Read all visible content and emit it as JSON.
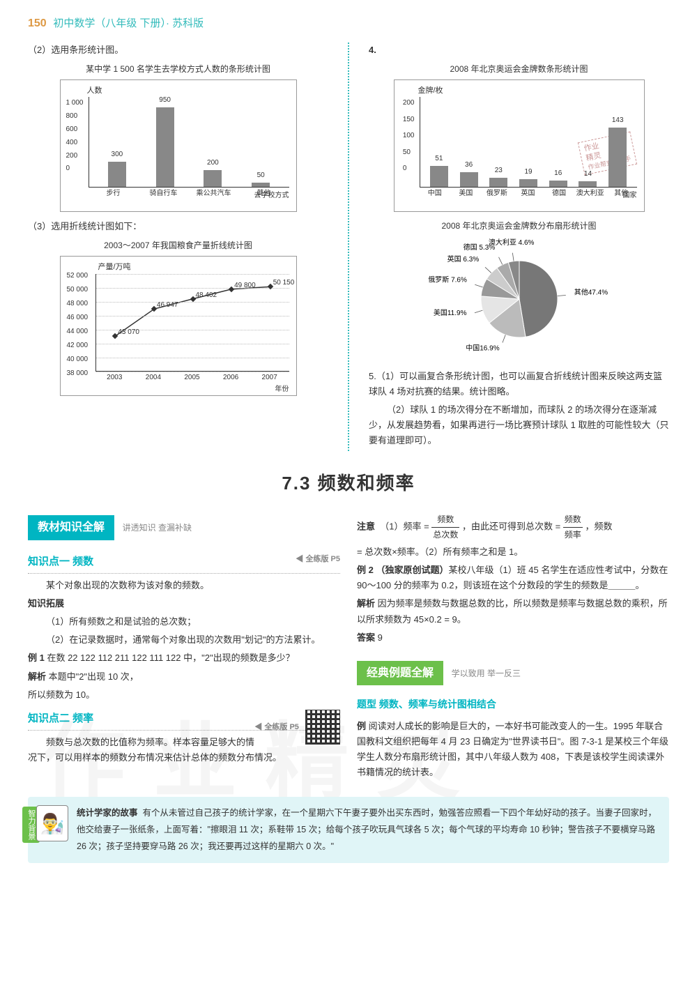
{
  "header": {
    "page_num": "150",
    "book_title": "初中数学（八年级  下册）· 苏科版"
  },
  "left": {
    "q2_label": "（2）选用条形统计图。",
    "bar1": {
      "title": "某中学 1 500 名学生去学校方式人数的条形统计图",
      "ylabel": "人数",
      "xlabel_suffix": "去学校方式",
      "ymax": 1000,
      "yticks": [
        "0",
        "200",
        "400",
        "600",
        "800",
        "1 000"
      ],
      "categories": [
        "步行",
        "骑自行车",
        "乘公共汽车",
        "其他"
      ],
      "values": [
        300,
        950,
        200,
        50
      ],
      "display_values": [
        "300",
        "950",
        "200",
        "50"
      ],
      "bar_color": "#888888"
    },
    "q3_label": "（3）选用折线统计图如下：",
    "line1": {
      "title": "2003～2007 年我国粮食产量折线统计图",
      "ylabel": "产量/万吨",
      "xlabel": "年份",
      "ymin": 38000,
      "ymax": 52000,
      "ystep": 2000,
      "yticks": [
        "38 000",
        "40 000",
        "42 000",
        "44 000",
        "46 000",
        "48 000",
        "50 000",
        "52 000"
      ],
      "years": [
        "2003",
        "2004",
        "2005",
        "2006",
        "2007"
      ],
      "values": [
        43070,
        46947,
        48402,
        49800,
        50150
      ],
      "display_values": [
        "43 070",
        "46 947",
        "48 402",
        "49 800",
        "50 150"
      ]
    }
  },
  "right": {
    "q4": "4.",
    "bar2": {
      "title": "2008 年北京奥运会金牌数条形统计图",
      "ylabel": "金牌/枚",
      "xlabel_suffix": "国家",
      "ymax": 200,
      "ystep": 50,
      "yticks": [
        "0",
        "50",
        "100",
        "150",
        "200"
      ],
      "categories": [
        "中国",
        "美国",
        "俄罗斯",
        "英国",
        "德国",
        "澳大利亚",
        "其他"
      ],
      "values": [
        51,
        36,
        23,
        19,
        16,
        14,
        143
      ],
      "display_values": [
        "51",
        "36",
        "23",
        "19",
        "16",
        "14",
        "143"
      ],
      "bar_color": "#888888"
    },
    "pie": {
      "title": "2008 年北京奥运会金牌数分布扇形统计图",
      "slices": [
        {
          "label": "其他47.4%",
          "value": 47.4,
          "color": "#777"
        },
        {
          "label": "中国16.9%",
          "value": 16.9,
          "color": "#bbb"
        },
        {
          "label": "美国11.9%",
          "value": 11.9,
          "color": "#e5e5e5"
        },
        {
          "label": "俄罗斯 7.6%",
          "value": 7.6,
          "color": "#999"
        },
        {
          "label": "英国 6.3%",
          "value": 6.3,
          "color": "#ccc"
        },
        {
          "label": "德国 5.3%",
          "value": 5.3,
          "color": "#aaa"
        },
        {
          "label": "澳大利亚 4.6%",
          "value": 4.6,
          "color": "#888"
        }
      ]
    },
    "q5_1": "5.（1）可以画复合条形统计图，也可以画复合折线统计图来反映这两支篮球队 4 场对抗赛的结果。统计图略。",
    "q5_2": "（2）球队 1 的场次得分在不断增加，而球队 2 的场次得分在逐渐减少，从发展趋势看，如果再进行一场比赛预计球队 1 取胜的可能性较大（只要有道理即可）。"
  },
  "section_title": "7.3  频数和频率",
  "know": {
    "ribbon": "教材知识全解",
    "ribbon_sub": "讲透知识 查漏补缺",
    "kp1_title": "知识点一  频数",
    "kp1_right": "◀ 全练版 P5",
    "kp1_text": "某个对象出现的次数称为该对象的频数。",
    "expand_label": "知识拓展",
    "expand_1": "（1）所有频数之和是试验的总次数；",
    "expand_2": "（2）在记录数据时，通常每个对象出现的次数用\"划记\"的方法累计。",
    "ex1_label": "例 1",
    "ex1_q": "在数 22 122 112 211 122 111 122 中，\"2\"出现的频数是多少？",
    "ex1_ana_label": "解析",
    "ex1_ana": "本题中\"2\"出现 10 次，",
    "ex1_ans": "所以频数为 10。",
    "kp2_title": "知识点二  频率",
    "kp2_right": "◀ 全练版 P5",
    "kp2_text": "频数与总次数的比值称为频率。样本容量足够大的情况下，可以用样本的频数分布情况来估计总体的频数分布情况。"
  },
  "note": {
    "label": "注意",
    "t1a": "（1）频率 =",
    "frac1_n": "频数",
    "frac1_d": "总次数",
    "t1b": "，由此还可得到总次数 =",
    "frac2_n": "频数",
    "frac2_d": "频率",
    "t1c": "，频数",
    "t2": "= 总次数×频率。（2）所有频率之和是 1。",
    "ex2_label": "例 2  （独家原创试题）",
    "ex2_q": "某校八年级（1）班 45 名学生在适应性考试中，分数在 90～100 分的频率为 0.2，则该班在这个分数段的学生的频数是＿＿＿。",
    "ex2_ana_label": "解析",
    "ex2_ana": "因为频率是频数与数据总数的比，所以频数是频率与数据总数的乘积，所以所求频数为 45×0.2 = 9。",
    "ex2_ans_label": "答案",
    "ex2_ans": "9"
  },
  "classic": {
    "ribbon": "经典例题全解",
    "ribbon_sub": "学以致用 举一反三",
    "topic": "题型  频数、频率与统计图相结合",
    "ex_label": "例",
    "ex_text": "阅读对人成长的影响是巨大的，一本好书可能改变人的一生。1995 年联合国教科文组织把每年 4 月 23 日确定为\"世界读书日\"。图 7-3-1 是某校三个年级学生人数分布扇形统计图，其中八年级人数为 408，下表是该校学生阅读课外书籍情况的统计表。"
  },
  "story": {
    "side": "智力背景",
    "title": "统计学家的故事",
    "text": "有个从未管过自己孩子的统计学家，在一个星期六下午妻子要外出买东西时，勉强答应照看一下四个年幼好动的孩子。当妻子回家时，他交给妻子一张纸条，上面写着：\"擦眼泪 11 次；系鞋带 15 次；给每个孩子吹玩具气球各 5 次；每个气球的平均寿命 10 秒钟；警告孩子不要横穿马路 26 次；孩子坚持要穿马路 26 次；我还要再过这样的星期六 0 次。\""
  },
  "stamp": {
    "l1": "作业",
    "l2": "精灵",
    "l3": "作业帮查外助手"
  },
  "watermark": "作业精灵"
}
